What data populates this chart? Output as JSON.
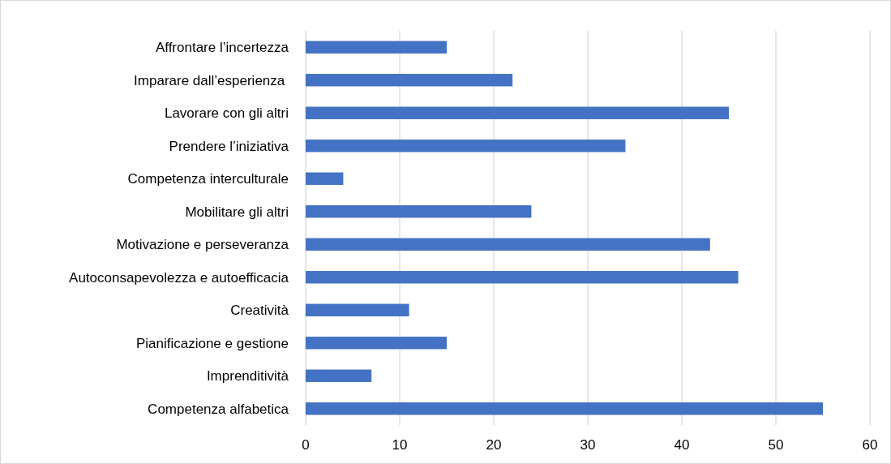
{
  "chart_data": {
    "type": "bar",
    "orientation": "horizontal",
    "categories": [
      "Affrontare l’incertezza",
      "Imparare dall’esperienza ",
      "Lavorare con gli altri",
      "Prendere l’iniziativa",
      "Competenza interculturale",
      "Mobilitare gli altri",
      "Motivazione e perseveranza",
      "Autoconsapevolezza e autoefficacia",
      "Creatività",
      "Pianificazione e gestione",
      "Imprenditività",
      "Competenza alfabetica"
    ],
    "values": [
      15,
      22,
      45,
      34,
      4,
      24,
      43,
      46,
      11,
      15,
      7,
      55
    ],
    "color": "#4472c4",
    "xlim": [
      0,
      60
    ],
    "xticks": [
      0,
      10,
      20,
      30,
      40,
      50,
      60
    ],
    "grid": "x"
  }
}
